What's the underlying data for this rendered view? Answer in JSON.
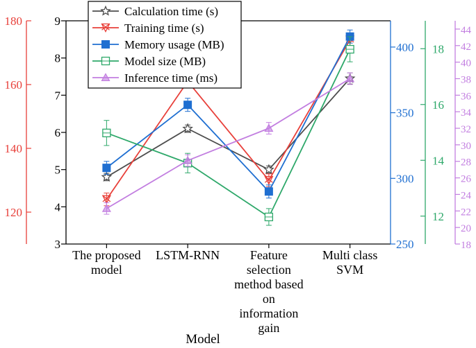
{
  "chart_data": {
    "type": "line",
    "xlabel": "Model",
    "categories": [
      [
        "The proposed",
        "model"
      ],
      [
        "LSTM-RNN"
      ],
      [
        "Feature",
        "selection",
        "method based",
        "on",
        "information",
        "gain"
      ],
      [
        "Multi class",
        "SVM"
      ]
    ],
    "axes": {
      "calc": {
        "label": "",
        "ylim": [
          3,
          9
        ],
        "ticks": [
          3,
          4,
          5,
          6,
          7,
          8,
          9
        ],
        "color": "#000000"
      },
      "train": {
        "label": "",
        "ylim": [
          110,
          180
        ],
        "ticks": [
          120,
          140,
          160,
          180
        ],
        "color": "#e8403a"
      },
      "mem": {
        "label": "",
        "ylim": [
          250,
          420
        ],
        "ticks": [
          250,
          300,
          350,
          400
        ],
        "color": "#1f6fd1"
      },
      "model": {
        "label": "",
        "ylim": [
          11,
          19
        ],
        "ticks": [
          12,
          14,
          16,
          18
        ],
        "color": "#2ea86a"
      },
      "infer": {
        "label": "",
        "ylim": [
          18,
          45
        ],
        "ticks": [
          18,
          20,
          22,
          24,
          26,
          28,
          30,
          32,
          34,
          36,
          38,
          40,
          42,
          44
        ],
        "color": "#c27ee0"
      }
    },
    "series": [
      {
        "name": "Calculation time (s)",
        "axis": "calc",
        "color": "#4d4d4d",
        "marker": "star",
        "values": [
          4.8,
          6.1,
          5.0,
          7.45
        ],
        "errors": [
          0.1,
          0.1,
          0.1,
          0.15
        ]
      },
      {
        "name": "Training time (s)",
        "axis": "train",
        "color": "#e8403a",
        "marker": "xtri",
        "values": [
          124,
          161,
          130,
          174
        ],
        "errors": [
          2,
          2,
          2,
          2
        ]
      },
      {
        "name": "Memory usage (MB)",
        "axis": "mem",
        "color": "#1f6fd1",
        "marker": "square",
        "values": [
          308,
          356,
          290,
          408
        ],
        "errors": [
          5,
          5,
          5,
          5
        ]
      },
      {
        "name": "Model size (MB)",
        "axis": "model",
        "color": "#2ea86a",
        "marker": "hsquare",
        "values": [
          14.98,
          13.9,
          11.97,
          17.98
        ],
        "errors": [
          0.45,
          0.35,
          0.3,
          0.45
        ]
      },
      {
        "name": "Inference time (ms)",
        "axis": "infer",
        "color": "#c27ee0",
        "marker": "triangle",
        "values": [
          22.3,
          28.1,
          32.0,
          38.0
        ],
        "errors": [
          0.7,
          0.7,
          0.7,
          0.7
        ]
      }
    ],
    "legend": "top-left",
    "grid": false
  }
}
